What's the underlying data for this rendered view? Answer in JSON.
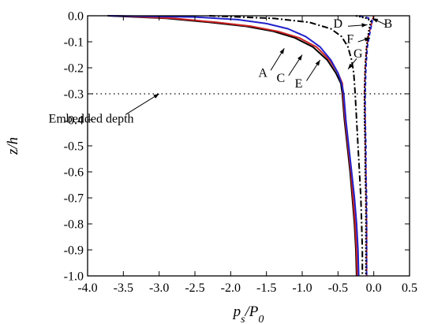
{
  "chart_data": {
    "type": "line",
    "title": "",
    "xlabel": {
      "main": "p",
      "sub1": "s",
      "mid": "/P",
      "sub2": "0"
    },
    "ylabel": {
      "main": "z",
      "rest": "/h"
    },
    "xlim": [
      -4.0,
      0.5
    ],
    "ylim": [
      -1.0,
      0.0
    ],
    "x_ticks": [
      "-4.0",
      "-3.5",
      "-3.0",
      "-2.5",
      "-2.0",
      "-1.5",
      "-1.0",
      "-0.5",
      "0.0",
      "0.5"
    ],
    "x_tick_values": [
      -4.0,
      -3.5,
      -3.0,
      -2.5,
      -2.0,
      -1.5,
      -1.0,
      -0.5,
      0.0,
      0.5
    ],
    "y_ticks": [
      "0.0",
      "-0.1",
      "-0.2",
      "-0.3",
      "-0.4",
      "-0.5",
      "-0.6",
      "-0.7",
      "-0.8",
      "-0.9",
      "-1.0"
    ],
    "y_tick_values": [
      0.0,
      -0.1,
      -0.2,
      -0.3,
      -0.4,
      -0.5,
      -0.6,
      -0.7,
      -0.8,
      -0.9,
      -1.0
    ],
    "grid": false,
    "series": [
      {
        "name": "A",
        "color": "#000000",
        "dash": "solid",
        "points": [
          [
            -3.72,
            0.0
          ],
          [
            -2.9,
            -0.01
          ],
          [
            -2.3,
            -0.025
          ],
          [
            -1.8,
            -0.04
          ],
          [
            -1.4,
            -0.06
          ],
          [
            -1.1,
            -0.085
          ],
          [
            -0.85,
            -0.12
          ],
          [
            -0.65,
            -0.17
          ],
          [
            -0.53,
            -0.22
          ],
          [
            -0.46,
            -0.26
          ],
          [
            -0.44,
            -0.3
          ],
          [
            -0.41,
            -0.4
          ],
          [
            -0.37,
            -0.5
          ],
          [
            -0.33,
            -0.6
          ],
          [
            -0.3,
            -0.7
          ],
          [
            -0.27,
            -0.8
          ],
          [
            -0.25,
            -0.9
          ],
          [
            -0.24,
            -1.0
          ]
        ]
      },
      {
        "name": "C",
        "color": "#cc2222",
        "dash": "solid",
        "points": [
          [
            -3.6,
            0.0
          ],
          [
            -2.8,
            -0.01
          ],
          [
            -2.2,
            -0.025
          ],
          [
            -1.72,
            -0.04
          ],
          [
            -1.34,
            -0.06
          ],
          [
            -1.04,
            -0.085
          ],
          [
            -0.8,
            -0.12
          ],
          [
            -0.62,
            -0.17
          ],
          [
            -0.5,
            -0.22
          ],
          [
            -0.44,
            -0.26
          ],
          [
            -0.43,
            -0.3
          ],
          [
            -0.4,
            -0.4
          ],
          [
            -0.36,
            -0.5
          ],
          [
            -0.32,
            -0.6
          ],
          [
            -0.29,
            -0.7
          ],
          [
            -0.26,
            -0.8
          ],
          [
            -0.24,
            -0.9
          ],
          [
            -0.23,
            -1.0
          ]
        ]
      },
      {
        "name": "E",
        "color": "#2222cc",
        "dash": "solid",
        "points": [
          [
            -3.7,
            0.0
          ],
          [
            -2.5,
            -0.005
          ],
          [
            -1.9,
            -0.015
          ],
          [
            -1.5,
            -0.03
          ],
          [
            -1.2,
            -0.05
          ],
          [
            -0.95,
            -0.08
          ],
          [
            -0.75,
            -0.12
          ],
          [
            -0.6,
            -0.17
          ],
          [
            -0.5,
            -0.22
          ],
          [
            -0.45,
            -0.26
          ],
          [
            -0.42,
            -0.3
          ],
          [
            -0.39,
            -0.4
          ],
          [
            -0.35,
            -0.5
          ],
          [
            -0.31,
            -0.6
          ],
          [
            -0.27,
            -0.7
          ],
          [
            -0.24,
            -0.8
          ],
          [
            -0.22,
            -0.9
          ],
          [
            -0.21,
            -1.0
          ]
        ]
      },
      {
        "name": "G",
        "color": "#000000",
        "dash": "dashdot",
        "points": [
          [
            -2.3,
            0.0
          ],
          [
            -1.4,
            -0.01
          ],
          [
            -0.9,
            -0.025
          ],
          [
            -0.6,
            -0.05
          ],
          [
            -0.45,
            -0.08
          ],
          [
            -0.36,
            -0.12
          ],
          [
            -0.31,
            -0.17
          ],
          [
            -0.28,
            -0.22
          ],
          [
            -0.27,
            -0.26
          ],
          [
            -0.26,
            -0.3
          ],
          [
            -0.24,
            -0.4
          ],
          [
            -0.22,
            -0.5
          ],
          [
            -0.2,
            -0.6
          ],
          [
            -0.18,
            -0.7
          ],
          [
            -0.17,
            -0.8
          ],
          [
            -0.16,
            -0.9
          ],
          [
            -0.16,
            -1.0
          ]
        ]
      },
      {
        "name": "B",
        "color": "#cc2222",
        "dash": "dashed",
        "points": [
          [
            0.0,
            0.0
          ],
          [
            -0.01,
            -0.01
          ],
          [
            -0.03,
            -0.03
          ],
          [
            -0.07,
            -0.07
          ],
          [
            -0.1,
            -0.12
          ],
          [
            -0.12,
            -0.2
          ],
          [
            -0.13,
            -0.3
          ],
          [
            -0.12,
            -0.4
          ],
          [
            -0.12,
            -0.5
          ],
          [
            -0.11,
            -0.6
          ],
          [
            -0.11,
            -0.7
          ],
          [
            -0.1,
            -0.8
          ],
          [
            -0.1,
            -0.9
          ],
          [
            -0.1,
            -1.0
          ]
        ]
      },
      {
        "name": "D",
        "color": "#2222cc",
        "dash": "dashed",
        "points": [
          [
            -0.2,
            0.0
          ],
          [
            -0.06,
            -0.01
          ],
          [
            -0.02,
            -0.02
          ],
          [
            -0.05,
            -0.06
          ],
          [
            -0.09,
            -0.12
          ],
          [
            -0.11,
            -0.2
          ],
          [
            -0.12,
            -0.3
          ],
          [
            -0.12,
            -0.4
          ],
          [
            -0.11,
            -0.5
          ],
          [
            -0.11,
            -0.6
          ],
          [
            -0.1,
            -0.7
          ],
          [
            -0.1,
            -0.8
          ],
          [
            -0.1,
            -0.9
          ],
          [
            -0.1,
            -1.0
          ]
        ]
      },
      {
        "name": "F",
        "color": "#000000",
        "dash": "dotted",
        "points": [
          [
            -0.25,
            0.0
          ],
          [
            -0.1,
            -0.01
          ],
          [
            -0.04,
            -0.02
          ],
          [
            -0.07,
            -0.06
          ],
          [
            -0.1,
            -0.12
          ],
          [
            -0.12,
            -0.2
          ],
          [
            -0.13,
            -0.3
          ],
          [
            -0.13,
            -0.4
          ],
          [
            -0.12,
            -0.5
          ],
          [
            -0.12,
            -0.6
          ],
          [
            -0.11,
            -0.7
          ],
          [
            -0.11,
            -0.8
          ],
          [
            -0.11,
            -0.9
          ],
          [
            -0.11,
            -1.0
          ]
        ]
      }
    ],
    "reference_line": {
      "y": -0.3,
      "style": "dotted"
    },
    "annotations": [
      {
        "text": "Embedded depth",
        "x": -3.95,
        "y": -0.41,
        "arrow_to": [
          -3.0,
          -0.3
        ],
        "arrow_from": [
          -3.47,
          -0.38
        ]
      },
      {
        "text": "A",
        "x": -1.55,
        "y": -0.235,
        "arrow_to": [
          -1.25,
          -0.125
        ],
        "arrow_from": [
          -1.44,
          -0.21
        ]
      },
      {
        "text": "C",
        "x": -1.3,
        "y": -0.255,
        "arrow_to": [
          -1.0,
          -0.15
        ],
        "arrow_from": [
          -1.19,
          -0.23
        ]
      },
      {
        "text": "E",
        "x": -1.05,
        "y": -0.275,
        "arrow_to": [
          -0.75,
          -0.17
        ],
        "arrow_from": [
          -0.94,
          -0.25
        ]
      },
      {
        "text": "D",
        "x": -0.5,
        "y": -0.045,
        "arrow_to": [
          -0.09,
          -0.035
        ],
        "arrow_from": [
          -0.36,
          -0.04
        ]
      },
      {
        "text": "F",
        "x": -0.33,
        "y": -0.105,
        "arrow_to": [
          -0.05,
          -0.085
        ],
        "arrow_from": [
          -0.22,
          -0.1
        ]
      },
      {
        "text": "G",
        "x": -0.22,
        "y": -0.16,
        "arrow_to": [
          -0.36,
          -0.205
        ],
        "arrow_from": [
          -0.24,
          -0.165
        ]
      },
      {
        "text": "B",
        "x": 0.2,
        "y": -0.045,
        "arrow_to": [
          -0.02,
          -0.01
        ],
        "arrow_from": [
          0.17,
          -0.035
        ]
      }
    ]
  }
}
